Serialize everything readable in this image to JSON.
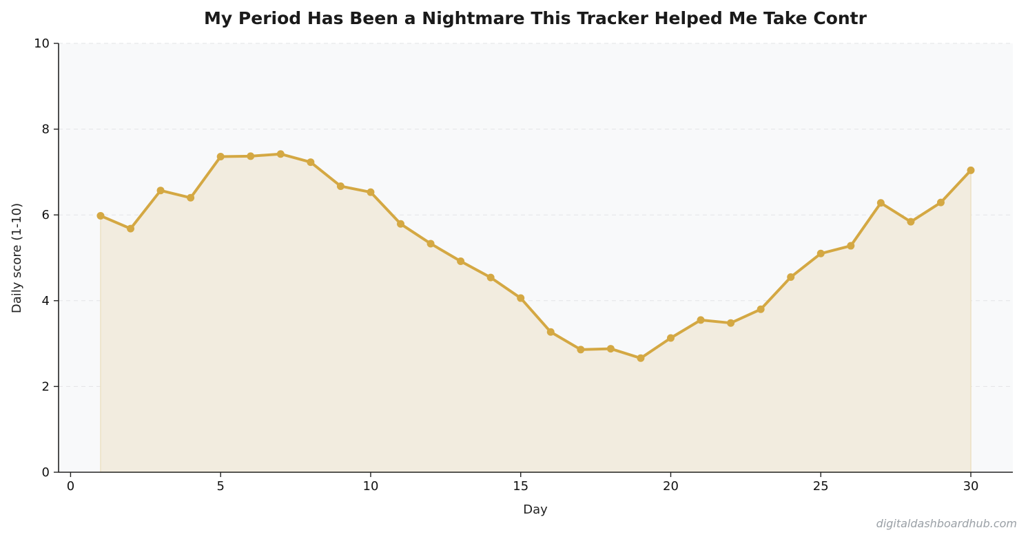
{
  "chart_data": {
    "type": "area",
    "title": "My Period Has Been a Nightmare  This Tracker Helped Me Take Contr",
    "xlabel": "Day",
    "ylabel": "Daily score (1-10)",
    "xlim": [
      -0.4,
      31.4
    ],
    "ylim": [
      0,
      10
    ],
    "xticks": [
      0,
      5,
      10,
      15,
      20,
      25,
      30
    ],
    "yticks": [
      0,
      2,
      4,
      6,
      8,
      10
    ],
    "grid": "y-dashed",
    "legend": "none",
    "x": [
      1,
      2,
      3,
      4,
      5,
      6,
      7,
      8,
      9,
      10,
      11,
      12,
      13,
      14,
      15,
      16,
      17,
      18,
      19,
      20,
      21,
      22,
      23,
      24,
      25,
      26,
      27,
      28,
      29,
      30
    ],
    "y": [
      5.98,
      5.68,
      6.57,
      6.4,
      7.36,
      7.37,
      7.42,
      7.23,
      6.67,
      6.53,
      5.79,
      5.33,
      4.92,
      4.54,
      4.06,
      3.27,
      2.86,
      2.88,
      2.66,
      3.13,
      3.55,
      3.48,
      3.8,
      4.55,
      5.1,
      5.28,
      6.28,
      5.84,
      6.29,
      7.04
    ],
    "colors": {
      "line": "#d4a843",
      "fill": "#f2ecdf",
      "plot_bg": "#f8f9fa",
      "grid": "#e2e4e6",
      "axis": "#222222"
    }
  },
  "watermark": "digitaldashboardhub.com"
}
